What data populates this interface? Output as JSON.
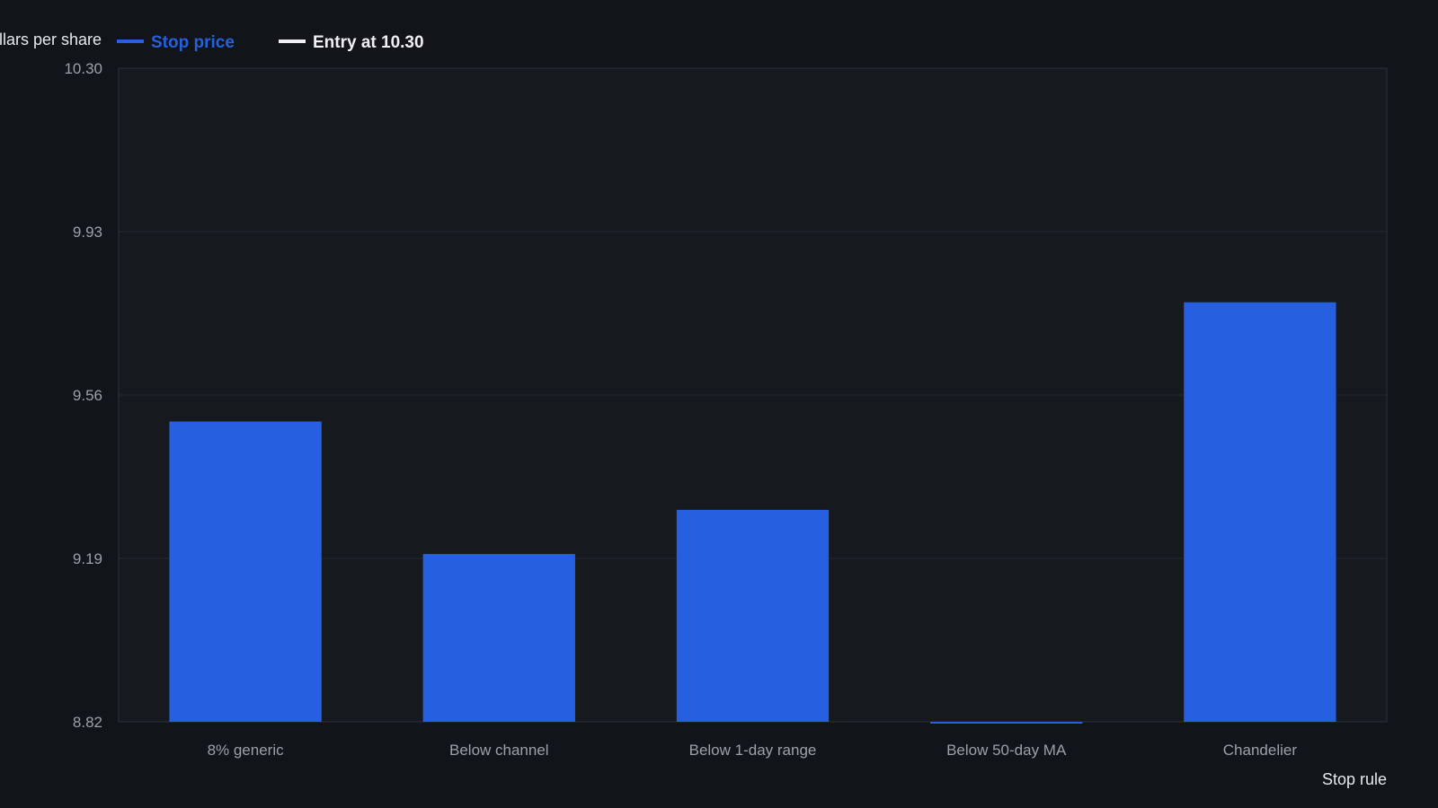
{
  "chart_data": {
    "type": "bar",
    "ylabel": "Dollars per share",
    "xlabel": "Stop rule",
    "legend": {
      "position": "top-left",
      "entries": [
        {
          "label": "Stop price",
          "color": "#2660e0"
        },
        {
          "label": "Entry at 10.30",
          "color": "#eef0f3"
        }
      ]
    },
    "categories": [
      "8% generic",
      "Below channel",
      "Below 1-day range",
      "Below 50-day MA",
      "Chandelier"
    ],
    "series": [
      {
        "name": "Stop price",
        "color": "#2660e0",
        "values": [
          9.5,
          9.2,
          9.3,
          8.82,
          9.77
        ]
      }
    ],
    "ylim": [
      8.82,
      10.3
    ],
    "yticks": [
      "8.82",
      "9.19",
      "9.56",
      "9.93",
      "10.30"
    ],
    "grid": true,
    "colors": {
      "background": "#111418",
      "plot_background": "#16191e",
      "bar": "#2660e0",
      "grid": "#262a31",
      "axis_text": "#9aa1ab",
      "label_text": "#e6e9ee"
    }
  }
}
